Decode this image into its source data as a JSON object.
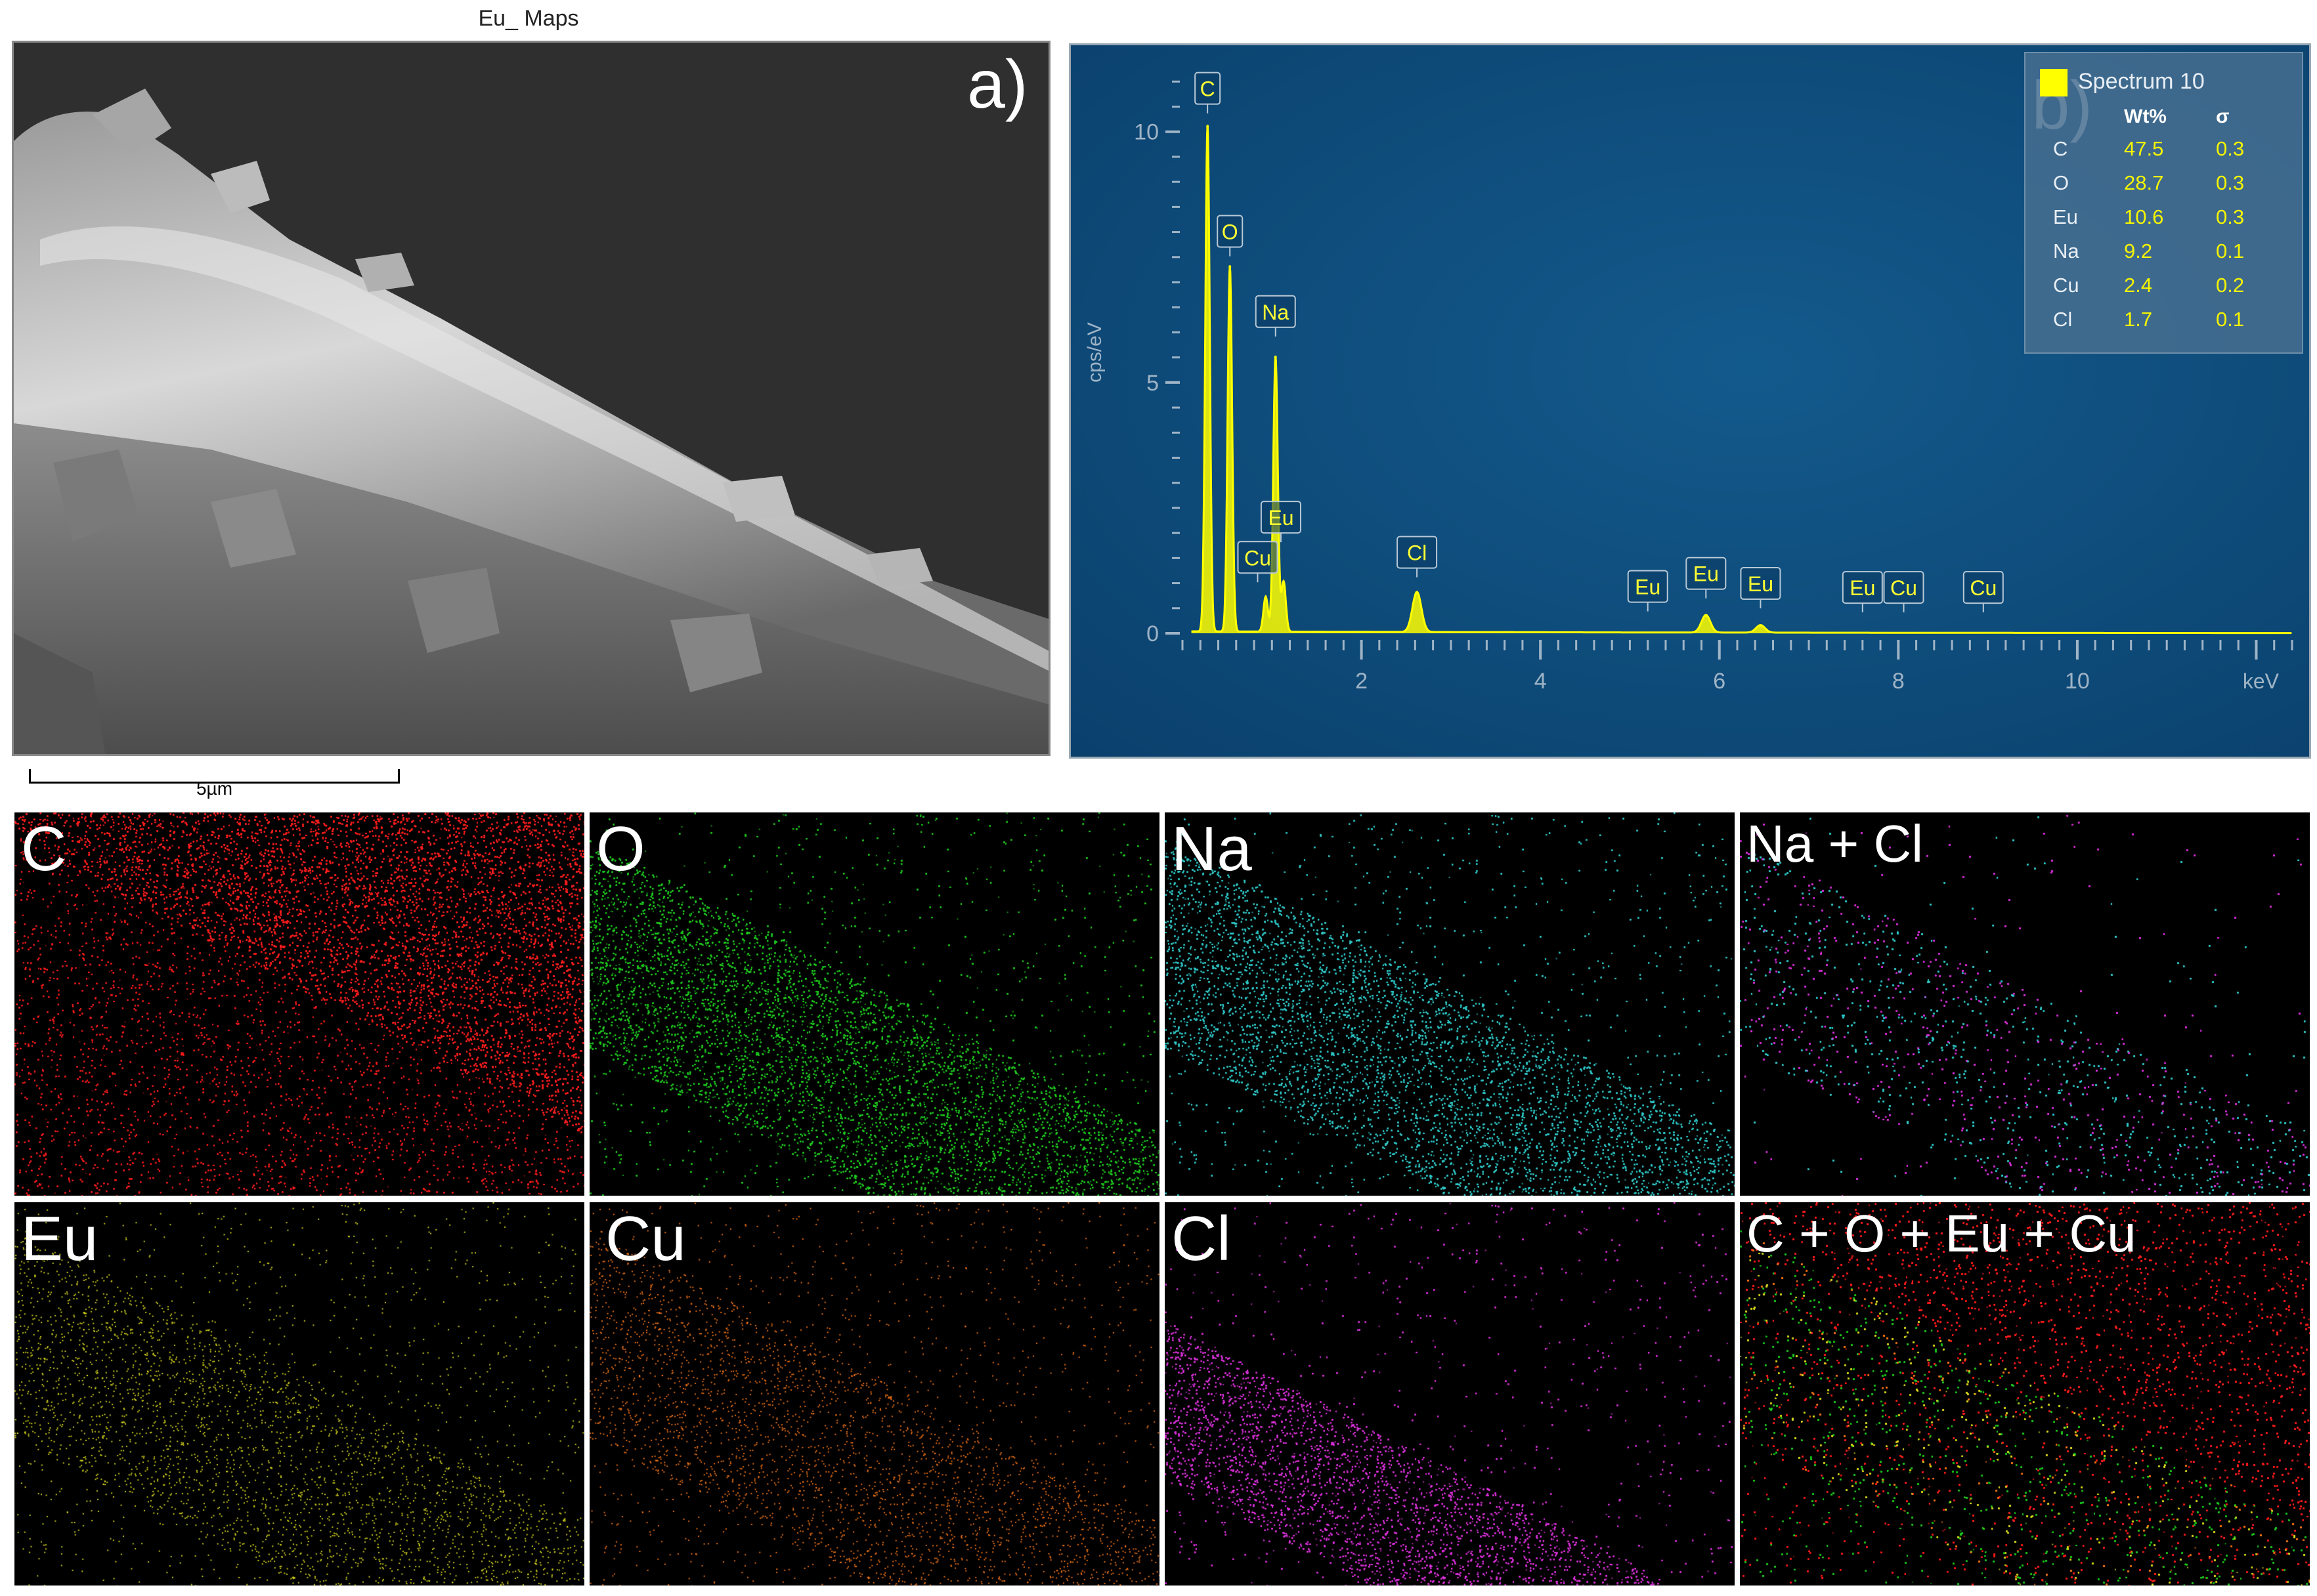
{
  "figure_title": "Eu_ Maps",
  "panel_a": {
    "letter": "a)",
    "scale_label": "5µm"
  },
  "panel_b": {
    "letter": "b)"
  },
  "chart_data": {
    "type": "line",
    "title": "",
    "xlabel": "keV",
    "ylabel": "cps/eV",
    "xlim": [
      0,
      12.4
    ],
    "ylim": [
      0,
      11.2
    ],
    "x_ticks": [
      "2",
      "4",
      "6",
      "8",
      "10"
    ],
    "y_ticks": [
      "0",
      "5",
      "10"
    ],
    "background": "#0e4f7f",
    "series_color": "#ffff00",
    "series": [
      {
        "name": "Spectrum 10",
        "peaks": [
          {
            "label": "C",
            "x": 0.28,
            "y": 10.1
          },
          {
            "label": "O",
            "x": 0.53,
            "y": 7.3
          },
          {
            "label": "Cu",
            "x": 0.93,
            "y": 0.7
          },
          {
            "label": "Na",
            "x": 1.04,
            "y": 5.5
          },
          {
            "label": "Eu",
            "x": 1.13,
            "y": 1.0
          },
          {
            "label": "Cl",
            "x": 2.62,
            "y": 0.8
          },
          {
            "label": "Eu",
            "x": 5.85,
            "y": 0.35
          },
          {
            "label": "Eu",
            "x": 6.46,
            "y": 0.15
          }
        ]
      }
    ],
    "peak_labels": [
      {
        "text": "C",
        "x": 0.28,
        "y": 10.55
      },
      {
        "text": "O",
        "x": 0.53,
        "y": 7.7
      },
      {
        "text": "Na",
        "x": 1.04,
        "y": 6.1
      },
      {
        "text": "Eu",
        "x": 1.1,
        "y": 2.0
      },
      {
        "text": "Cu",
        "x": 0.84,
        "y": 1.2
      },
      {
        "text": "Cl",
        "x": 2.62,
        "y": 1.3
      },
      {
        "text": "Eu",
        "x": 5.2,
        "y": 0.62
      },
      {
        "text": "Eu",
        "x": 5.85,
        "y": 0.88
      },
      {
        "text": "Eu",
        "x": 6.46,
        "y": 0.68
      },
      {
        "text": "Eu",
        "x": 7.6,
        "y": 0.6
      },
      {
        "text": "Cu",
        "x": 8.06,
        "y": 0.6
      },
      {
        "text": "Cu",
        "x": 8.95,
        "y": 0.6
      }
    ],
    "legend": {
      "position": "top-right",
      "name": "Spectrum 10",
      "headers": [
        "Wt%",
        "σ"
      ],
      "rows": [
        {
          "element": "C",
          "wt": "47.5",
          "sigma": "0.3"
        },
        {
          "element": "O",
          "wt": "28.7",
          "sigma": "0.3"
        },
        {
          "element": "Eu",
          "wt": "10.6",
          "sigma": "0.3"
        },
        {
          "element": "Na",
          "wt": "9.2",
          "sigma": "0.1"
        },
        {
          "element": "Cu",
          "wt": "2.4",
          "sigma": "0.2"
        },
        {
          "element": "Cl",
          "wt": "1.7",
          "sigma": "0.1"
        }
      ]
    }
  },
  "maps": [
    {
      "label": "C",
      "color": "#ff2020"
    },
    {
      "label": "O",
      "color": "#22cc22"
    },
    {
      "label": "Na",
      "color": "#33cccc"
    },
    {
      "label": "Na + Cl",
      "color": "#cc44cc"
    },
    {
      "label": "Eu",
      "color": "#e0e020"
    },
    {
      "label": "Cu",
      "color": "#ff7a1a"
    },
    {
      "label": "Cl",
      "color": "#dd33dd"
    },
    {
      "label": "C + O + Eu + Cu",
      "color": "#ff2020"
    }
  ]
}
